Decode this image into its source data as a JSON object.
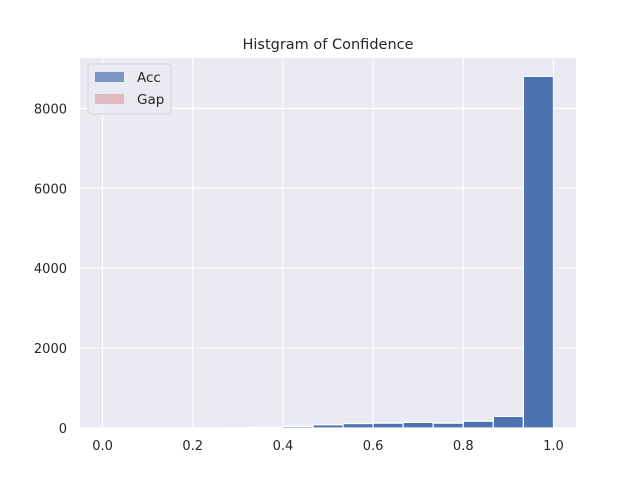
{
  "chart_data": {
    "type": "bar",
    "title": "Histgram of Confidence",
    "xlabel": "",
    "ylabel": "",
    "xlim": [
      -0.05,
      1.05
    ],
    "ylim": [
      0,
      9260
    ],
    "x_ticks": [
      0.0,
      0.2,
      0.4,
      0.6,
      0.8,
      1.0
    ],
    "x_tick_labels": [
      "0.0",
      "0.2",
      "0.4",
      "0.6",
      "0.8",
      "1.0"
    ],
    "y_ticks": [
      0,
      2000,
      4000,
      6000,
      8000
    ],
    "y_tick_labels": [
      "0",
      "2000",
      "4000",
      "6000",
      "8000"
    ],
    "grid": true,
    "legend_position": "upper-left",
    "colors": {
      "background": "#eaeaf2",
      "grid": "#ffffff",
      "acc": "#4c72b0",
      "gap": "#dd8452"
    },
    "series": [
      {
        "name": "Acc",
        "bin_width": 0.0667,
        "bin_starts": [
          0.0,
          0.0667,
          0.1333,
          0.2,
          0.2667,
          0.3333,
          0.4,
          0.4667,
          0.5333,
          0.6,
          0.6667,
          0.7333,
          0.8,
          0.8667,
          0.9333
        ],
        "values": [
          0,
          0,
          0,
          5,
          10,
          20,
          40,
          80,
          110,
          120,
          140,
          120,
          170,
          290,
          8800
        ]
      },
      {
        "name": "Gap",
        "values": []
      }
    ]
  }
}
